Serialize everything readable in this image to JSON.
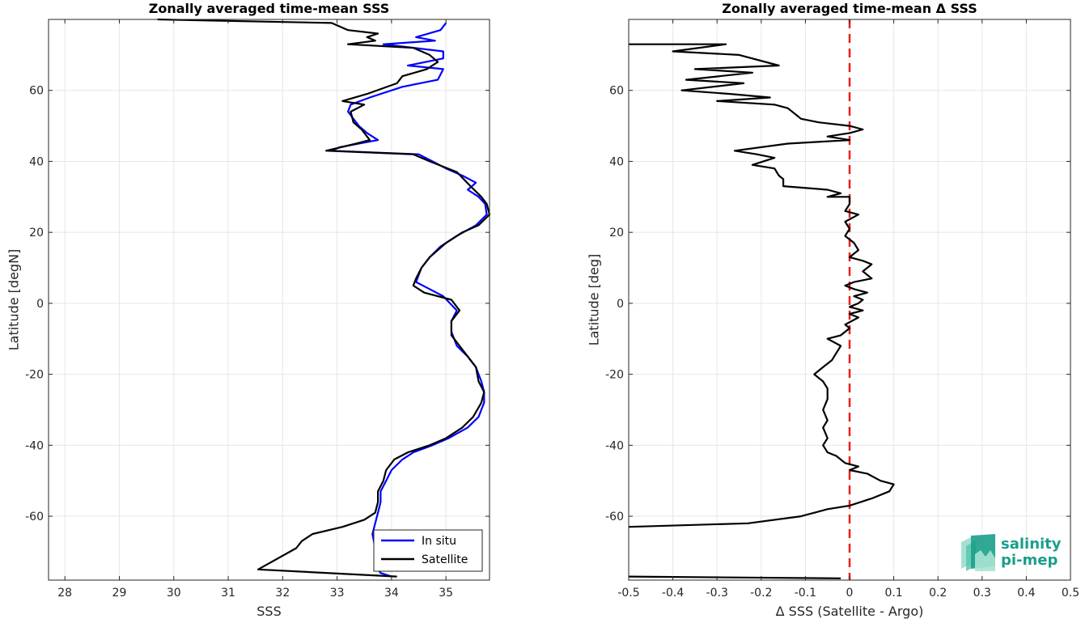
{
  "chart_data": [
    {
      "type": "line",
      "title": "Zonally averaged time-mean SSS",
      "xlabel": "SSS",
      "ylabel": "Latitude [degN]",
      "xlim": [
        27.7,
        35.8
      ],
      "ylim": [
        -78,
        80
      ],
      "xticks": [
        28,
        29,
        30,
        31,
        32,
        33,
        34,
        35
      ],
      "yticks": [
        -60,
        -40,
        -20,
        0,
        20,
        40,
        60
      ],
      "grid": true,
      "legend_position": "bottom-right",
      "series": [
        {
          "name": "In situ",
          "color": "#0000ff",
          "points": [
            [
              35.0,
              79
            ],
            [
              34.9,
              77
            ],
            [
              34.45,
              75
            ],
            [
              34.8,
              74
            ],
            [
              33.85,
              73
            ],
            [
              34.95,
              71
            ],
            [
              34.95,
              69
            ],
            [
              34.3,
              67
            ],
            [
              34.95,
              66
            ],
            [
              34.85,
              63
            ],
            [
              34.2,
              61
            ],
            [
              33.6,
              58
            ],
            [
              33.25,
              56
            ],
            [
              33.2,
              54
            ],
            [
              33.3,
              52
            ],
            [
              33.4,
              50
            ],
            [
              33.55,
              48
            ],
            [
              33.75,
              46
            ],
            [
              33.05,
              44
            ],
            [
              32.9,
              43
            ],
            [
              34.5,
              42
            ],
            [
              34.75,
              40
            ],
            [
              35.0,
              38
            ],
            [
              35.3,
              36
            ],
            [
              35.55,
              34
            ],
            [
              35.4,
              32
            ],
            [
              35.6,
              30
            ],
            [
              35.72,
              28
            ],
            [
              35.75,
              25
            ],
            [
              35.55,
              22
            ],
            [
              35.2,
              19
            ],
            [
              34.9,
              16
            ],
            [
              34.7,
              13
            ],
            [
              34.55,
              10
            ],
            [
              34.5,
              8
            ],
            [
              34.45,
              6
            ],
            [
              34.7,
              4
            ],
            [
              34.95,
              2
            ],
            [
              35.2,
              -2
            ],
            [
              35.1,
              -5
            ],
            [
              35.1,
              -8
            ],
            [
              35.2,
              -12
            ],
            [
              35.4,
              -15
            ],
            [
              35.55,
              -18
            ],
            [
              35.6,
              -20
            ],
            [
              35.65,
              -22
            ],
            [
              35.7,
              -25
            ],
            [
              35.7,
              -28
            ],
            [
              35.6,
              -32
            ],
            [
              35.4,
              -35
            ],
            [
              35.05,
              -38
            ],
            [
              34.75,
              -40
            ],
            [
              34.4,
              -42
            ],
            [
              34.2,
              -44
            ],
            [
              34.0,
              -47
            ],
            [
              33.9,
              -50
            ],
            [
              33.8,
              -53
            ],
            [
              33.8,
              -56
            ],
            [
              33.75,
              -59
            ],
            [
              33.7,
              -62
            ],
            [
              33.65,
              -65
            ],
            [
              33.7,
              -69
            ],
            [
              33.75,
              -75
            ],
            [
              33.8,
              -76
            ],
            [
              34.0,
              -77
            ]
          ]
        },
        {
          "name": "Satellite",
          "color": "#000000",
          "points": [
            [
              29.7,
              80
            ],
            [
              32.9,
              79
            ],
            [
              33.2,
              77
            ],
            [
              33.75,
              76
            ],
            [
              33.55,
              75
            ],
            [
              33.7,
              74
            ],
            [
              33.2,
              73
            ],
            [
              34.4,
              72
            ],
            [
              34.7,
              70
            ],
            [
              34.85,
              68
            ],
            [
              34.65,
              66
            ],
            [
              34.2,
              64
            ],
            [
              34.1,
              62
            ],
            [
              33.55,
              59
            ],
            [
              33.1,
              57
            ],
            [
              33.5,
              56
            ],
            [
              33.25,
              54
            ],
            [
              33.3,
              51
            ],
            [
              33.45,
              49
            ],
            [
              33.6,
              46
            ],
            [
              33.35,
              45
            ],
            [
              32.8,
              43
            ],
            [
              34.4,
              42
            ],
            [
              34.7,
              40
            ],
            [
              35.2,
              37
            ],
            [
              35.45,
              33
            ],
            [
              35.65,
              30
            ],
            [
              35.75,
              28
            ],
            [
              35.8,
              25
            ],
            [
              35.6,
              22
            ],
            [
              35.3,
              20
            ],
            [
              35.0,
              17
            ],
            [
              34.7,
              13
            ],
            [
              34.55,
              10
            ],
            [
              34.45,
              7
            ],
            [
              34.4,
              5
            ],
            [
              34.6,
              3
            ],
            [
              35.1,
              1
            ],
            [
              35.25,
              -2
            ],
            [
              35.1,
              -5
            ],
            [
              35.1,
              -9
            ],
            [
              35.25,
              -12
            ],
            [
              35.4,
              -15
            ],
            [
              35.55,
              -18
            ],
            [
              35.6,
              -22
            ],
            [
              35.7,
              -25
            ],
            [
              35.65,
              -28
            ],
            [
              35.5,
              -32
            ],
            [
              35.3,
              -35
            ],
            [
              35.0,
              -38
            ],
            [
              34.7,
              -40
            ],
            [
              34.3,
              -42
            ],
            [
              34.05,
              -44
            ],
            [
              33.9,
              -47
            ],
            [
              33.85,
              -50
            ],
            [
              33.75,
              -53
            ],
            [
              33.75,
              -56
            ],
            [
              33.7,
              -59
            ],
            [
              33.5,
              -61
            ],
            [
              33.1,
              -63
            ],
            [
              32.55,
              -65
            ],
            [
              32.35,
              -67
            ],
            [
              32.25,
              -69
            ],
            [
              31.55,
              -75
            ],
            [
              34.1,
              -77
            ]
          ]
        }
      ]
    },
    {
      "type": "line",
      "title": "Zonally averaged time-mean Δ SSS",
      "xlabel": "Δ SSS (Satellite - Argo)",
      "ylabel": "Latitude [deg]",
      "xlim": [
        -0.5,
        0.5
      ],
      "ylim": [
        -78,
        80
      ],
      "xticks": [
        -0.5,
        -0.4,
        -0.3,
        -0.2,
        -0.1,
        0,
        0.1,
        0.2,
        0.3,
        0.4,
        0.5
      ],
      "xtick_labels": [
        "-0.5",
        "-0.4",
        "-0.3",
        "-0.2",
        "-0.1",
        "0",
        "0.1",
        "0.2",
        "0.3",
        "0.4",
        "0.5"
      ],
      "yticks": [
        -60,
        -40,
        -20,
        0,
        20,
        40,
        60
      ],
      "grid": true,
      "reference_line": {
        "x": 0,
        "color": "#e8201a",
        "style": "dashed"
      },
      "series": [
        {
          "name": "",
          "color": "#000000",
          "points": [
            [
              -0.5,
              73
            ],
            [
              -0.28,
              73
            ],
            [
              -0.4,
              71
            ],
            [
              -0.25,
              70
            ],
            [
              -0.16,
              67
            ],
            [
              -0.35,
              66
            ],
            [
              -0.22,
              65
            ],
            [
              -0.37,
              63
            ],
            [
              -0.24,
              62
            ],
            [
              -0.38,
              60
            ],
            [
              -0.27,
              59
            ],
            [
              -0.18,
              58
            ],
            [
              -0.3,
              57
            ],
            [
              -0.17,
              56
            ],
            [
              -0.14,
              55
            ],
            [
              -0.12,
              53
            ],
            [
              -0.11,
              52
            ],
            [
              -0.07,
              51
            ],
            [
              0.0,
              50
            ],
            [
              0.03,
              49
            ],
            [
              0.0,
              48
            ],
            [
              -0.05,
              47
            ],
            [
              0.0,
              46
            ],
            [
              -0.14,
              45
            ],
            [
              -0.26,
              43
            ],
            [
              -0.21,
              42
            ],
            [
              -0.17,
              41
            ],
            [
              -0.22,
              39
            ],
            [
              -0.17,
              38
            ],
            [
              -0.16,
              36
            ],
            [
              -0.15,
              35
            ],
            [
              -0.15,
              33
            ],
            [
              -0.05,
              32
            ],
            [
              -0.02,
              31
            ],
            [
              -0.05,
              30
            ],
            [
              0.0,
              30
            ],
            [
              0.0,
              28
            ],
            [
              -0.01,
              26
            ],
            [
              0.02,
              25
            ],
            [
              -0.01,
              23
            ],
            [
              0.0,
              21
            ],
            [
              -0.01,
              19
            ],
            [
              0.01,
              17
            ],
            [
              0.02,
              15
            ],
            [
              0.0,
              13
            ],
            [
              0.03,
              12
            ],
            [
              0.05,
              11
            ],
            [
              0.03,
              9
            ],
            [
              0.05,
              7
            ],
            [
              0.01,
              6
            ],
            [
              -0.01,
              5
            ],
            [
              0.01,
              4
            ],
            [
              0.04,
              3
            ],
            [
              0.01,
              2
            ],
            [
              0.03,
              1
            ],
            [
              0.02,
              0
            ],
            [
              0.0,
              -1
            ],
            [
              0.03,
              -2
            ],
            [
              0.0,
              -3
            ],
            [
              0.02,
              -4
            ],
            [
              -0.01,
              -6
            ],
            [
              0.0,
              -7
            ],
            [
              -0.02,
              -9
            ],
            [
              -0.05,
              -10
            ],
            [
              -0.02,
              -12
            ],
            [
              -0.03,
              -14
            ],
            [
              -0.04,
              -16
            ],
            [
              -0.06,
              -18
            ],
            [
              -0.08,
              -20
            ],
            [
              -0.06,
              -22
            ],
            [
              -0.05,
              -24
            ],
            [
              -0.05,
              -27
            ],
            [
              -0.06,
              -30
            ],
            [
              -0.05,
              -33
            ],
            [
              -0.06,
              -35
            ],
            [
              -0.05,
              -38
            ],
            [
              -0.06,
              -40
            ],
            [
              -0.05,
              -42
            ],
            [
              -0.03,
              -43
            ],
            [
              -0.01,
              -45
            ],
            [
              0.02,
              -46
            ],
            [
              0.0,
              -47
            ],
            [
              0.04,
              -48
            ],
            [
              0.07,
              -50
            ],
            [
              0.1,
              -51
            ],
            [
              0.09,
              -53
            ],
            [
              0.05,
              -55
            ],
            [
              0.0,
              -57
            ],
            [
              -0.05,
              -58
            ],
            [
              -0.11,
              -60
            ],
            [
              -0.23,
              -62
            ],
            [
              -0.5,
              -63
            ]
          ]
        },
        {
          "name": "",
          "color": "#000000",
          "points": [
            [
              -0.5,
              -77
            ],
            [
              -0.02,
              -77.5
            ]
          ]
        }
      ]
    }
  ],
  "legend": {
    "items": [
      {
        "label": "In situ",
        "color": "#0000ff"
      },
      {
        "label": "Satellite",
        "color": "#000000"
      }
    ]
  },
  "logo": {
    "line1": "salinity",
    "line2": "pi-mep",
    "color": "#1a9e8a"
  }
}
